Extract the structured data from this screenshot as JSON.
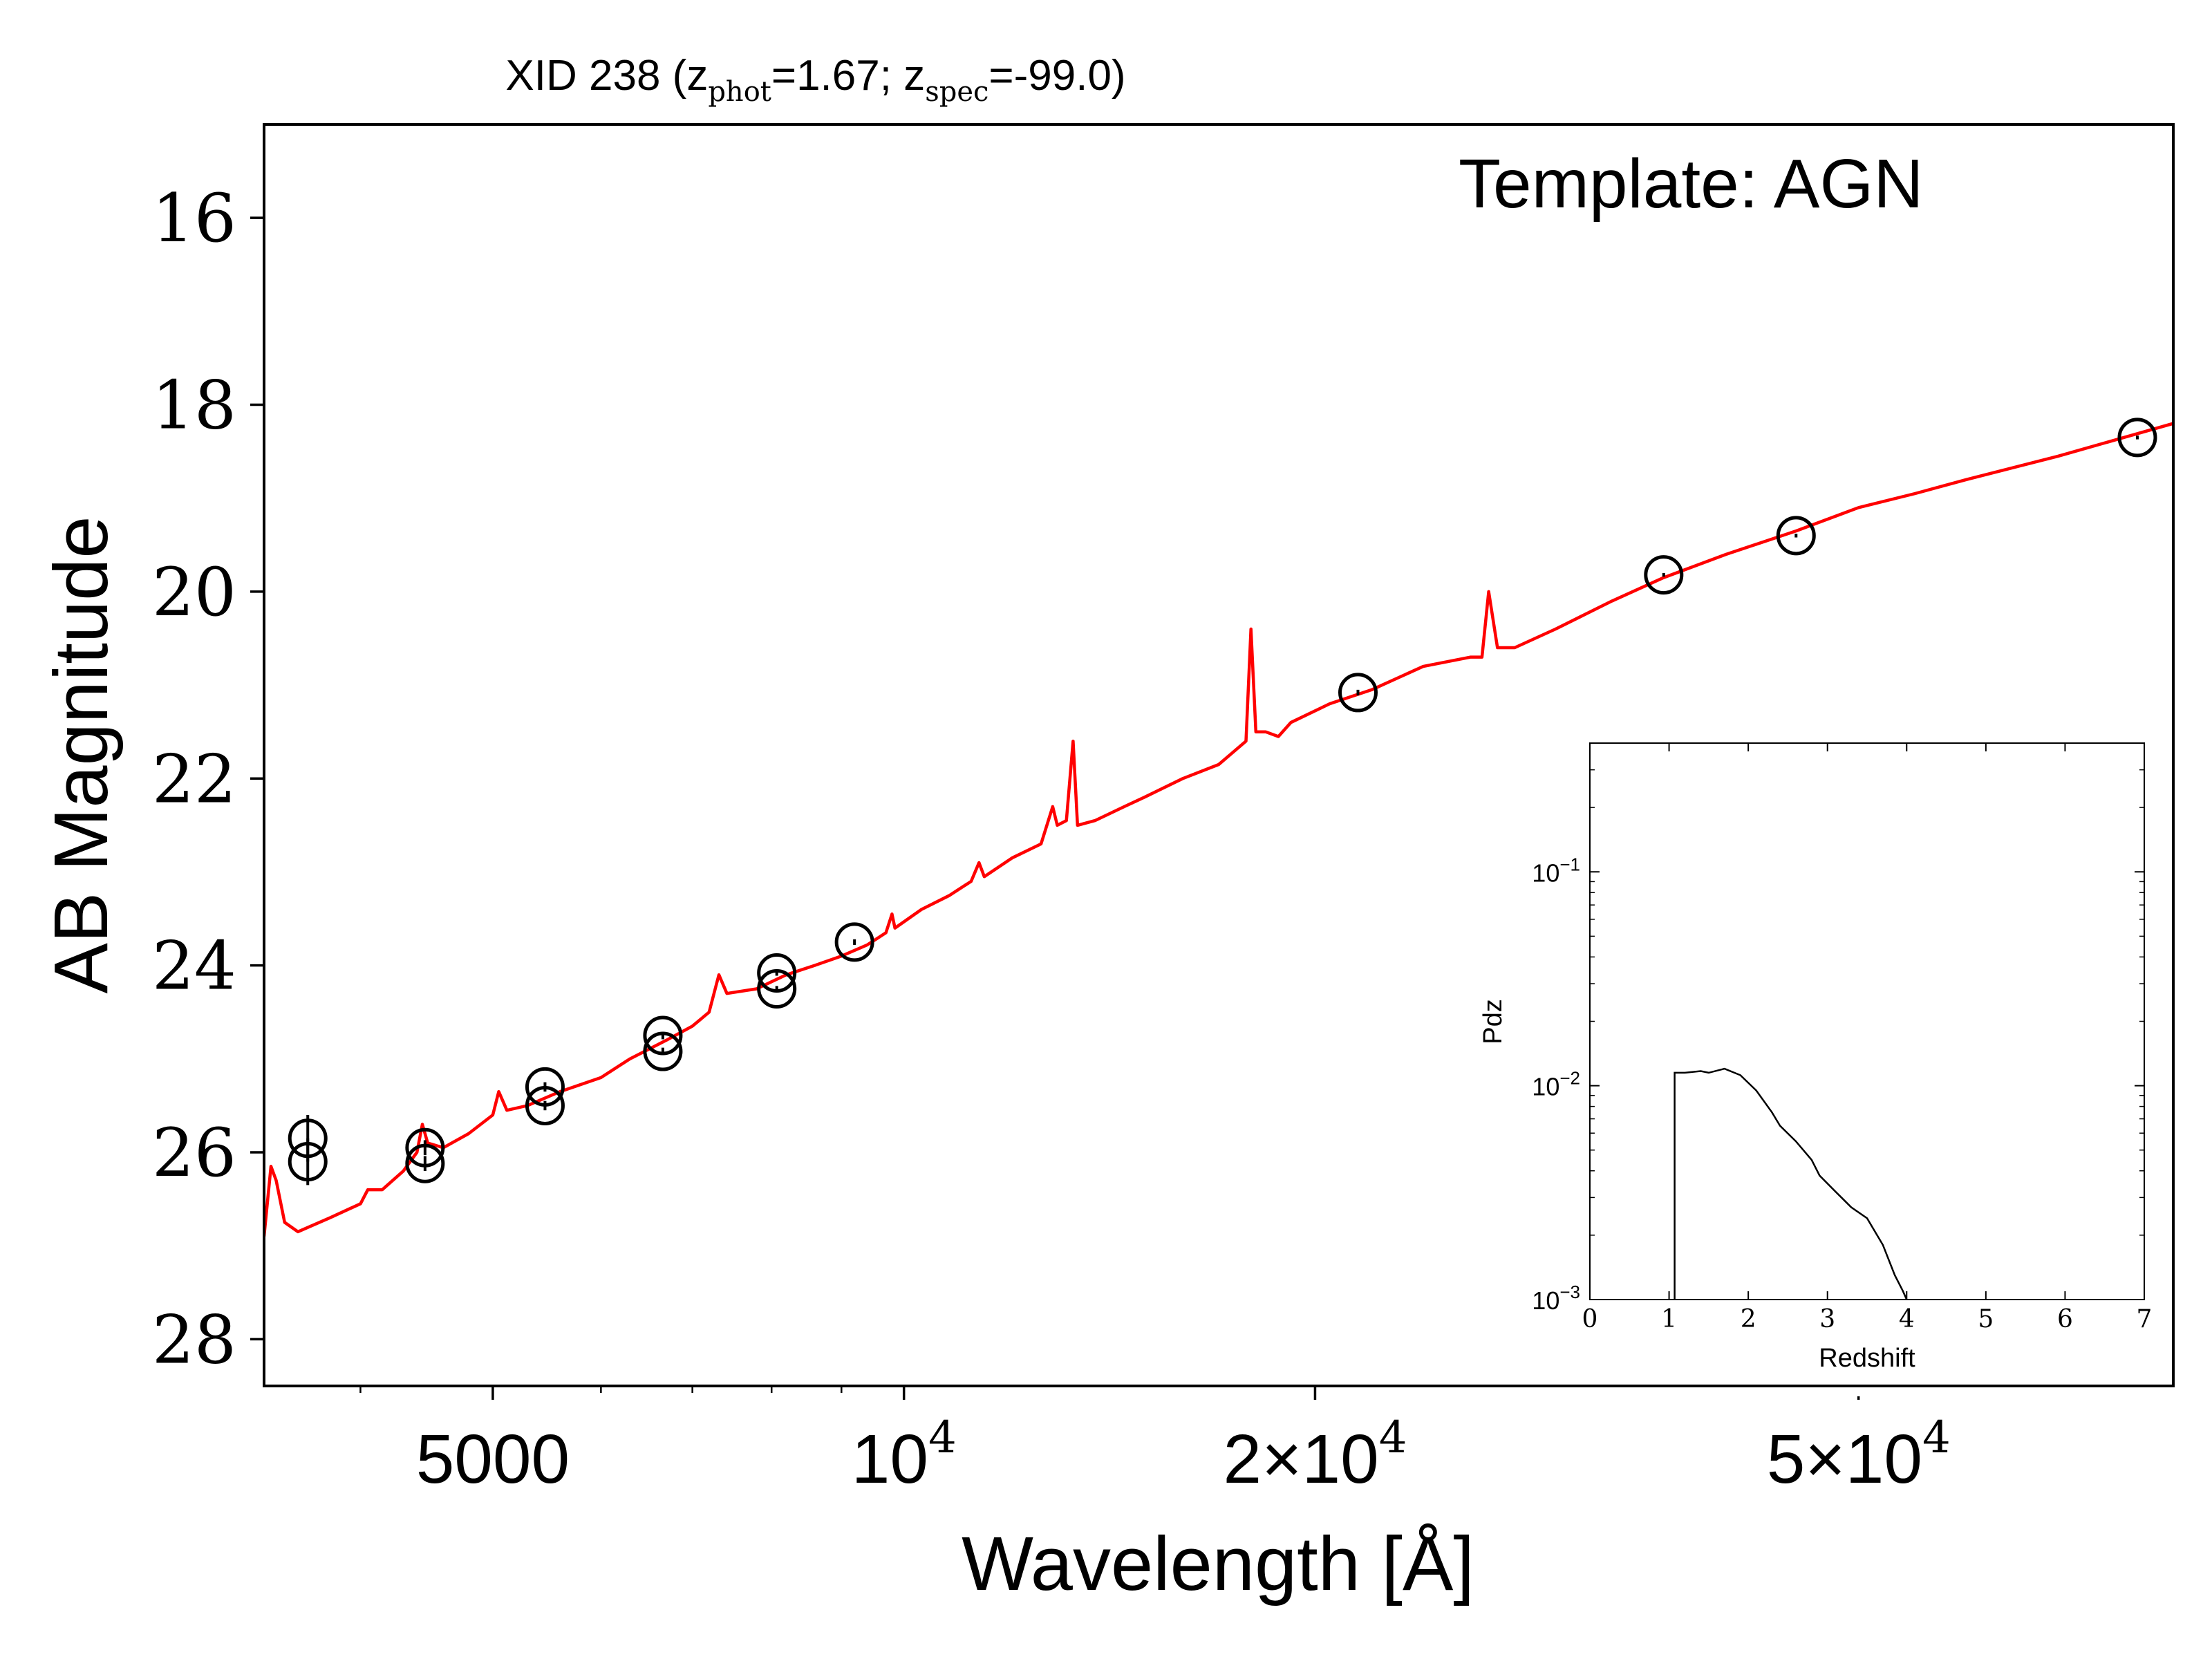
{
  "chart_data": {
    "type": "scatter",
    "title": {
      "prefix": "XID 238 (z",
      "sub1": "phot",
      "mid": "=1.67; z",
      "sub2": "spec",
      "suffix": "=-99.0)"
    },
    "annotation": "Template: AGN",
    "xlabel": "Wavelength [Å]",
    "ylabel": "AB Magnitude",
    "x_scale": "log",
    "xlim": [
      3400,
      85000
    ],
    "ylim": [
      28.5,
      15.0
    ],
    "y_inverted": true,
    "grid": false,
    "x_ticks": [
      {
        "value": 5000,
        "label": "5000"
      },
      {
        "value": 10000,
        "label": "10",
        "sup": "4"
      },
      {
        "value": 20000,
        "label": "2×10",
        "sup": "4"
      },
      {
        "value": 50000,
        "label": "5×10",
        "sup": "4"
      }
    ],
    "y_ticks": [
      16,
      18,
      20,
      22,
      24,
      26,
      28
    ],
    "photometry": {
      "name": "",
      "marker": "open-circle",
      "color": "#000000",
      "points": [
        {
          "x": 3660,
          "y": 25.85,
          "yerr": 0.25
        },
        {
          "x": 3660,
          "y": 26.1,
          "yerr": 0.25
        },
        {
          "x": 4460,
          "y": 25.95,
          "yerr": 0.08
        },
        {
          "x": 4460,
          "y": 26.12,
          "yerr": 0.08
        },
        {
          "x": 5460,
          "y": 25.3,
          "yerr": 0.05
        },
        {
          "x": 5460,
          "y": 25.5,
          "yerr": 0.05
        },
        {
          "x": 6660,
          "y": 24.75,
          "yerr": 0.04
        },
        {
          "x": 6660,
          "y": 24.92,
          "yerr": 0.04
        },
        {
          "x": 8070,
          "y": 24.08,
          "yerr": 0.03
        },
        {
          "x": 8070,
          "y": 24.25,
          "yerr": 0.03
        },
        {
          "x": 9200,
          "y": 23.75,
          "yerr": 0.03
        },
        {
          "x": 21500,
          "y": 21.08,
          "yerr": 0.03
        },
        {
          "x": 36000,
          "y": 19.82,
          "yerr": 0.02
        },
        {
          "x": 45000,
          "y": 19.4,
          "yerr": 0.02
        },
        {
          "x": 80000,
          "y": 18.35,
          "yerr": 0.02
        }
      ]
    },
    "template_sed": {
      "name": "",
      "color": "#ff0000",
      "points": [
        [
          3400,
          26.9
        ],
        [
          3440,
          26.15
        ],
        [
          3470,
          26.3
        ],
        [
          3520,
          26.75
        ],
        [
          3600,
          26.85
        ],
        [
          3800,
          26.7
        ],
        [
          4000,
          26.55
        ],
        [
          4050,
          26.4
        ],
        [
          4150,
          26.4
        ],
        [
          4300,
          26.2
        ],
        [
          4400,
          26.0
        ],
        [
          4440,
          25.7
        ],
        [
          4480,
          25.9
        ],
        [
          4600,
          25.95
        ],
        [
          4800,
          25.8
        ],
        [
          5000,
          25.6
        ],
        [
          5050,
          25.35
        ],
        [
          5120,
          25.55
        ],
        [
          5300,
          25.5
        ],
        [
          5600,
          25.35
        ],
        [
          6000,
          25.2
        ],
        [
          6300,
          25.0
        ],
        [
          6700,
          24.8
        ],
        [
          7000,
          24.65
        ],
        [
          7200,
          24.5
        ],
        [
          7320,
          24.1
        ],
        [
          7420,
          24.3
        ],
        [
          7800,
          24.25
        ],
        [
          8200,
          24.1
        ],
        [
          8600,
          24.0
        ],
        [
          9000,
          23.9
        ],
        [
          9400,
          23.78
        ],
        [
          9700,
          23.65
        ],
        [
          9800,
          23.45
        ],
        [
          9850,
          23.6
        ],
        [
          10300,
          23.4
        ],
        [
          10800,
          23.25
        ],
        [
          11200,
          23.1
        ],
        [
          11350,
          22.9
        ],
        [
          11450,
          23.05
        ],
        [
          12000,
          22.85
        ],
        [
          12600,
          22.7
        ],
        [
          12850,
          22.3
        ],
        [
          12950,
          22.5
        ],
        [
          13150,
          22.45
        ],
        [
          13300,
          21.6
        ],
        [
          13400,
          22.5
        ],
        [
          13800,
          22.45
        ],
        [
          14500,
          22.3
        ],
        [
          15000,
          22.2
        ],
        [
          16000,
          22.0
        ],
        [
          17000,
          21.85
        ],
        [
          17800,
          21.6
        ],
        [
          17950,
          20.4
        ],
        [
          18100,
          21.5
        ],
        [
          18400,
          21.5
        ],
        [
          18800,
          21.55
        ],
        [
          19200,
          21.4
        ],
        [
          20500,
          21.2
        ],
        [
          22000,
          21.05
        ],
        [
          24000,
          20.8
        ],
        [
          26000,
          20.7
        ],
        [
          26500,
          20.7
        ],
        [
          26800,
          20.0
        ],
        [
          27200,
          20.6
        ],
        [
          28000,
          20.6
        ],
        [
          30000,
          20.4
        ],
        [
          33000,
          20.1
        ],
        [
          36000,
          19.85
        ],
        [
          40000,
          19.6
        ],
        [
          45000,
          19.35
        ],
        [
          50000,
          19.1
        ],
        [
          55000,
          18.95
        ],
        [
          60000,
          18.8
        ],
        [
          70000,
          18.55
        ],
        [
          85000,
          18.2
        ]
      ]
    },
    "inset": {
      "type": "line",
      "xlabel": "Redshift",
      "ylabel": "Pdz",
      "y_scale": "log",
      "xlim": [
        0,
        7
      ],
      "ylim": [
        0.001,
        0.4
      ],
      "x_ticks": [
        0,
        1,
        2,
        3,
        4,
        5,
        6,
        7
      ],
      "y_ticks": [
        {
          "value": 0.001,
          "label": "10",
          "sup": "−3"
        },
        {
          "value": 0.01,
          "label": "10",
          "sup": "−2"
        },
        {
          "value": 0.1,
          "label": "10",
          "sup": "−1"
        }
      ],
      "color": "#000000",
      "points": [
        [
          1.07,
          0.001
        ],
        [
          1.07,
          0.0115
        ],
        [
          1.2,
          0.0115
        ],
        [
          1.4,
          0.0117
        ],
        [
          1.5,
          0.0115
        ],
        [
          1.7,
          0.012
        ],
        [
          1.9,
          0.0112
        ],
        [
          2.1,
          0.0095
        ],
        [
          2.3,
          0.0075
        ],
        [
          2.4,
          0.0065
        ],
        [
          2.6,
          0.0055
        ],
        [
          2.8,
          0.0045
        ],
        [
          2.9,
          0.0038
        ],
        [
          3.1,
          0.0032
        ],
        [
          3.3,
          0.0027
        ],
        [
          3.5,
          0.0024
        ],
        [
          3.7,
          0.0018
        ],
        [
          3.85,
          0.0013
        ],
        [
          3.95,
          0.0011
        ],
        [
          4.0,
          0.001
        ]
      ]
    }
  }
}
